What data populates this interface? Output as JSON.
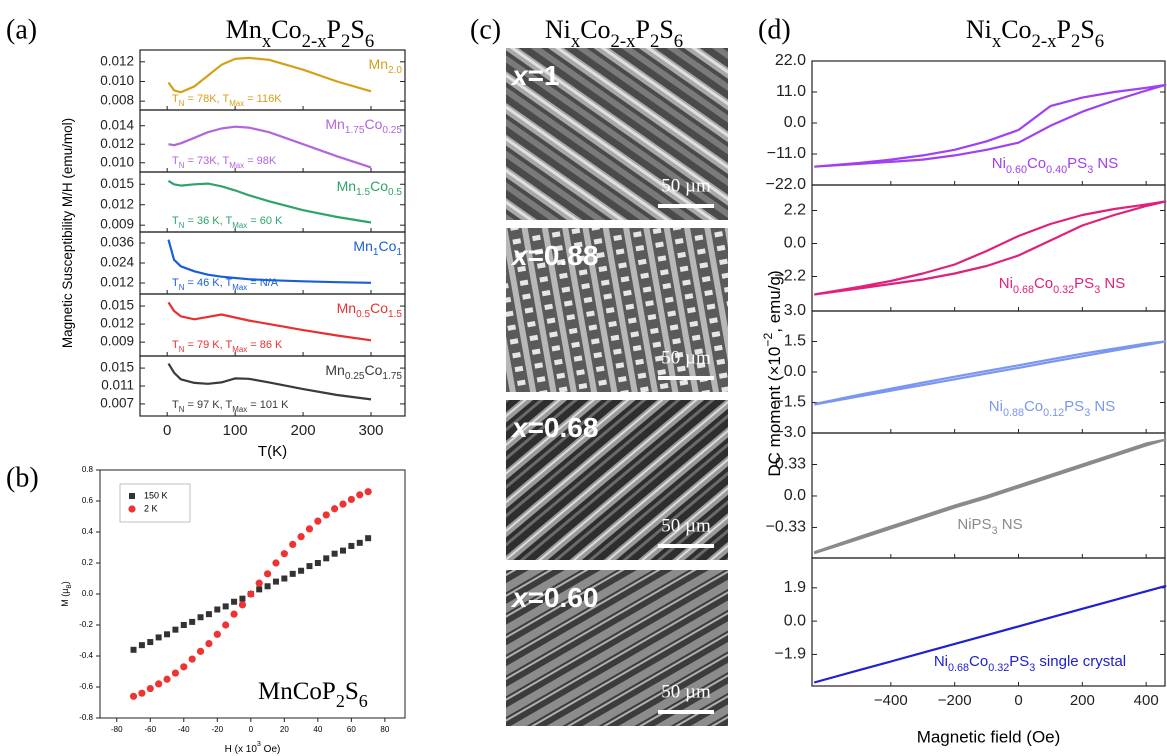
{
  "chart_data": [
    {
      "type": "line",
      "panel_label": "(a)",
      "title": "MnxCo2-xP2S6",
      "x_label": "T(K)",
      "y_label": "Magnetic Susceptibility M/H (emu/mol)",
      "xlim": [
        -40,
        350
      ],
      "xticks": [
        0,
        100,
        200,
        300
      ],
      "x": [
        2,
        10,
        20,
        40,
        60,
        80,
        100,
        120,
        150,
        200,
        250,
        300
      ],
      "panels": [
        {
          "annotation": "TN = 78K, TMax = 116K",
          "ylim": [
            0.0071,
            0.0132
          ],
          "yticks": [
            0.008,
            {
              "value": 0.01,
              "label": "0.010"
            },
            0.012
          ],
          "series": [
            {
              "name": "Mn2.0",
              "color": "#d4a017",
              "values": [
                0.0099,
                0.0091,
                0.0089,
                0.0095,
                0.0106,
                0.0117,
                0.0123,
                0.0124,
                0.0122,
                0.0112,
                0.01,
                0.009
              ]
            }
          ]
        },
        {
          "annotation": "TN = 73K, TMax = 98K",
          "ylim": [
            0.009,
            0.0157
          ],
          "yticks": [
            {
              "value": 0.01,
              "label": "0.010"
            },
            0.012,
            0.014
          ],
          "series": [
            {
              "name": "Mn1.75Co0.25",
              "color": "#b066dd",
              "values": [
                0.012,
                0.0119,
                0.0121,
                0.0127,
                0.0133,
                0.0137,
                0.0139,
                0.0138,
                0.0133,
                0.012,
                0.0107,
                0.0095
              ]
            }
          ]
        },
        {
          "annotation": "TN = 36 K, TMax = 60 K",
          "ylim": [
            0.008,
            0.0168
          ],
          "yticks": [
            0.009,
            0.012,
            0.015
          ],
          "series": [
            {
              "name": "Mn1.5Co0.5",
              "color": "#2ea36a",
              "values": [
                0.0155,
                0.015,
                0.0148,
                0.015,
                0.0151,
                0.0147,
                0.0141,
                0.0134,
                0.0125,
                0.0112,
                0.0102,
                0.0094
              ]
            }
          ]
        },
        {
          "annotation": "TN = 46 K, TMax = N/A",
          "ylim": [
            0.0054,
            0.0426
          ],
          "yticks": [
            0.012,
            0.024,
            0.036
          ],
          "series": [
            {
              "name": "Mn1Co1",
              "color": "#1a5fd6",
              "values": [
                0.038,
                0.026,
                0.022,
                0.019,
                0.017,
                0.0158,
                0.015,
                0.0143,
                0.0137,
                0.013,
                0.0125,
                0.0121
              ]
            }
          ]
        },
        {
          "annotation": "TN = 79 K, TMax = 86 K",
          "ylim": [
            0.0067,
            0.017
          ],
          "yticks": [
            0.009,
            0.012,
            0.015
          ],
          "series": [
            {
              "name": "Mn0.5Co1.5",
              "color": "#e83030",
              "values": [
                0.0156,
                0.0142,
                0.0133,
                0.0128,
                0.0132,
                0.0136,
                0.0131,
                0.0126,
                0.012,
                0.011,
                0.0101,
                0.0093
              ]
            }
          ]
        },
        {
          "annotation": "TN = 97 K, TMax = 101 K",
          "ylim": [
            0.0043,
            0.0177
          ],
          "yticks": [
            0.007,
            0.011,
            0.015
          ],
          "series": [
            {
              "name": "Mn0.25Co1.75",
              "color": "#3a3a3a",
              "values": [
                0.016,
                0.014,
                0.0125,
                0.0117,
                0.0115,
                0.0118,
                0.0127,
                0.0126,
                0.0118,
                0.0103,
                0.009,
                0.008
              ]
            }
          ]
        }
      ]
    },
    {
      "type": "scatter",
      "panel_label": "(b)",
      "annotation": "MnCoP2S6",
      "x_label": "H (x 103 Oe)",
      "y_label": "M (μB)",
      "xlim": [
        -90,
        92
      ],
      "xticks": [
        -80,
        -60,
        -40,
        -20,
        0,
        20,
        40,
        60,
        80
      ],
      "ylim": [
        -0.8,
        0.8
      ],
      "yticks": [
        0.8,
        0.6,
        0.4,
        0.2,
        {
          "value": 0,
          "label": "0.0"
        },
        -0.2,
        -0.4,
        -0.6,
        -0.8
      ],
      "legend": "upper left",
      "x": [
        -70,
        -65,
        -60,
        -55,
        -50,
        -45,
        -40,
        -35,
        -30,
        -25,
        -20,
        -15,
        -10,
        -5,
        0,
        5,
        10,
        15,
        20,
        25,
        30,
        35,
        40,
        45,
        50,
        55,
        60,
        65,
        70
      ],
      "series": [
        {
          "name": "150 K",
          "color": "#333333",
          "marker": "square",
          "values": [
            -0.36,
            -0.33,
            -0.31,
            -0.28,
            -0.26,
            -0.23,
            -0.2,
            -0.18,
            -0.15,
            -0.13,
            -0.1,
            -0.08,
            -0.05,
            -0.03,
            0,
            0.03,
            0.05,
            0.08,
            0.1,
            0.13,
            0.15,
            0.18,
            0.2,
            0.23,
            0.26,
            0.28,
            0.31,
            0.33,
            0.36
          ]
        },
        {
          "name": "2 K",
          "color": "#ee3333",
          "marker": "circle",
          "values": [
            -0.66,
            -0.64,
            -0.61,
            -0.58,
            -0.55,
            -0.51,
            -0.47,
            -0.42,
            -0.37,
            -0.32,
            -0.26,
            -0.2,
            -0.13,
            -0.07,
            0,
            0.07,
            0.13,
            0.2,
            0.26,
            0.32,
            0.37,
            0.42,
            0.47,
            0.51,
            0.55,
            0.58,
            0.61,
            0.64,
            0.66
          ]
        }
      ]
    },
    {
      "type": "line",
      "panel_label": "(d)",
      "title": "NixCo2-xP2S6",
      "x_label": "Magnetic field (Oe)",
      "y_label": "DC moment (×10−2, emu/g)",
      "xlim": [
        -647,
        459
      ],
      "xticks": [
        {
          "value": -400,
          "label": "−400"
        },
        {
          "value": -200,
          "label": "−200"
        },
        0,
        200,
        400
      ],
      "x": [
        -640,
        -500,
        -400,
        -300,
        -200,
        -100,
        0,
        100,
        200,
        300,
        400,
        460,
        400,
        300,
        200,
        100,
        0,
        -100,
        -200,
        -300,
        -400,
        -500,
        -640
      ],
      "panels": [
        {
          "ylim": [
            -22,
            22
          ],
          "yticks": [
            {
              "value": 22,
              "label": "22.0"
            },
            {
              "value": 11,
              "label": "11.0"
            },
            {
              "value": 0,
              "label": "0.0"
            },
            {
              "value": -11,
              "label": "−11.0"
            },
            {
              "value": -22,
              "label": "−22.0"
            }
          ],
          "series": [
            {
              "name": "Ni0.60Co0.40PS3 NS",
              "color": "#a040f0",
              "values": [
                -15.5,
                -14.5,
                -13.8,
                -13,
                -11.5,
                -9.5,
                -7,
                -1,
                4,
                8,
                11.5,
                13.5,
                12.5,
                11,
                9,
                6,
                -2.5,
                -6.5,
                -9.5,
                -11.5,
                -13,
                -14.2,
                -15.5
              ]
            }
          ]
        },
        {
          "ylim": [
            -4.5,
            3.9
          ],
          "yticks": [
            2.2,
            {
              "value": 0,
              "label": "0.0"
            },
            {
              "value": -2.2,
              "label": "−2.2"
            }
          ],
          "series": [
            {
              "name": "Ni0.68Co0.32PS3 NS",
              "color": "#e0207a",
              "values": [
                -3.4,
                -3,
                -2.7,
                -2.4,
                -2,
                -1.5,
                -0.8,
                0.2,
                1.2,
                1.9,
                2.5,
                2.8,
                2.6,
                2.3,
                1.9,
                1.3,
                0.5,
                -0.5,
                -1.4,
                -2,
                -2.5,
                -2.9,
                -3.4
              ]
            }
          ]
        },
        {
          "ylim": [
            -3,
            3
          ],
          "yticks": [
            {
              "value": 3,
              "label": "3.0"
            },
            1.5,
            {
              "value": 0,
              "label": "0.0"
            },
            {
              "value": -1.5,
              "label": "−1.5"
            },
            {
              "value": -3,
              "label": "−3.0"
            }
          ],
          "series": [
            {
              "name": "Ni0.88Co0.12PS3 NS",
              "color": "#7b96f0",
              "values": [
                -1.6,
                -1.2,
                -0.92,
                -0.64,
                -0.36,
                -0.08,
                0.2,
                0.49,
                0.77,
                1.05,
                1.33,
                1.5,
                1.4,
                1.15,
                0.9,
                0.62,
                0.33,
                0.05,
                -0.23,
                -0.52,
                -0.82,
                -1.12,
                -1.58
              ]
            }
          ]
        },
        {
          "ylim": [
            -0.65,
            0.66
          ],
          "yticks": [
            0.33,
            {
              "value": 0,
              "label": "0.0"
            },
            {
              "value": -0.33,
              "label": "−0.33"
            }
          ],
          "series": [
            {
              "name": "NiPS3 NS",
              "color": "#8a8a8a",
              "values": [
                -0.6,
                -0.45,
                -0.34,
                -0.23,
                -0.12,
                -0.02,
                0.09,
                0.2,
                0.31,
                0.42,
                0.53,
                0.59,
                0.55,
                0.44,
                0.33,
                0.22,
                0.11,
                0,
                -0.1,
                -0.21,
                -0.32,
                -0.43,
                -0.59
              ]
            }
          ]
        },
        {
          "ylim": [
            -3.7,
            3.6
          ],
          "yticks": [
            1.9,
            {
              "value": 0,
              "label": "0.0"
            },
            {
              "value": -1.9,
              "label": "−1.9"
            }
          ],
          "series": [
            {
              "name": "Ni0.68Co0.32PS3 single crystal",
              "color": "#2020d0",
              "values": [
                -3.5,
                -2.8,
                -2.3,
                -1.8,
                -1.3,
                -0.8,
                -0.3,
                0.2,
                0.7,
                1.2,
                1.7,
                2,
                1.7,
                1.2,
                0.7,
                0.2,
                -0.3,
                -0.8,
                -1.3,
                -1.8,
                -2.3,
                -2.8,
                -3.5
              ]
            }
          ]
        }
      ]
    }
  ],
  "sem_panel": {
    "panel_label": "(c)",
    "title": "NixCo2-xP2S6",
    "images": [
      {
        "label": "x=1",
        "scale_bar": "50 µm"
      },
      {
        "label": "x=0.88",
        "scale_bar": "50 µm"
      },
      {
        "label": "x=0.68",
        "scale_bar": "50 µm"
      },
      {
        "label": "x=0.60",
        "scale_bar": "50 µm"
      }
    ]
  }
}
